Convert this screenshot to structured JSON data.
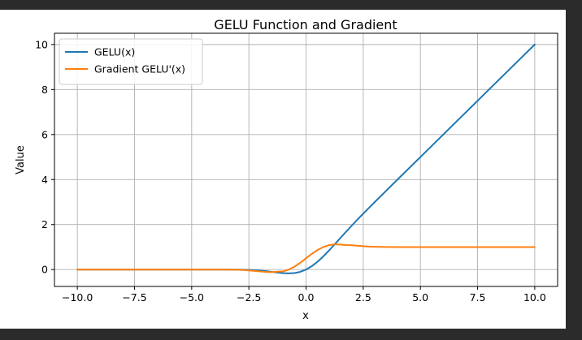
{
  "chart_data": {
    "type": "line",
    "title": "GELU Function and Gradient",
    "xlabel": "x",
    "ylabel": "Value",
    "xlim": [
      -11,
      11
    ],
    "ylim": [
      -0.75,
      10.5
    ],
    "xticks": [
      -10.0,
      -7.5,
      -5.0,
      -2.5,
      0.0,
      2.5,
      5.0,
      7.5,
      10.0
    ],
    "xtick_labels": [
      "−10.0",
      "−7.5",
      "−5.0",
      "−2.5",
      "0.0",
      "2.5",
      "5.0",
      "7.5",
      "10.0"
    ],
    "yticks": [
      0,
      2,
      4,
      6,
      8,
      10
    ],
    "ytick_labels": [
      "0",
      "2",
      "4",
      "6",
      "8",
      "10"
    ],
    "grid": true,
    "legend_position": "upper-left",
    "series": [
      {
        "name": "GELU(x)",
        "color": "#1f77b4",
        "x": [
          -10,
          -9,
          -8,
          -7,
          -6,
          -5,
          -4,
          -3.5,
          -3,
          -2.75,
          -2.5,
          -2.25,
          -2,
          -1.75,
          -1.5,
          -1.25,
          -1,
          -0.75,
          -0.5,
          -0.25,
          0,
          0.25,
          0.5,
          0.75,
          1,
          1.25,
          1.5,
          1.75,
          2,
          2.25,
          2.5,
          2.75,
          3,
          3.5,
          4,
          5,
          6,
          7,
          8,
          9,
          10
        ],
        "y": [
          0,
          0,
          0,
          0,
          0,
          0,
          -0.0001,
          -0.0008,
          -0.004,
          -0.008,
          -0.0155,
          -0.0275,
          -0.0455,
          -0.07,
          -0.1002,
          -0.1321,
          -0.1587,
          -0.1699,
          -0.1543,
          -0.1003,
          0,
          0.1497,
          0.3457,
          0.5801,
          0.8413,
          1.1179,
          1.3998,
          1.68,
          1.9545,
          2.2225,
          2.4845,
          2.7418,
          2.996,
          3.4992,
          3.9999,
          5,
          6,
          7,
          8,
          9,
          10
        ]
      },
      {
        "name": "Gradient GELU'(x)",
        "color": "#ff7f0e",
        "x": [
          -10,
          -9,
          -8,
          -7,
          -6,
          -5,
          -4,
          -3.5,
          -3,
          -2.75,
          -2.5,
          -2.25,
          -2,
          -1.75,
          -1.5,
          -1.25,
          -1,
          -0.75,
          -0.5,
          -0.25,
          0,
          0.25,
          0.5,
          0.75,
          1,
          1.25,
          1.5,
          1.75,
          2,
          2.25,
          2.5,
          2.75,
          3,
          3.5,
          4,
          5,
          6,
          7,
          8,
          9,
          10
        ],
        "y": [
          0,
          0,
          0,
          0,
          0,
          0,
          -0.0005,
          -0.0029,
          -0.0119,
          -0.0219,
          -0.0375,
          -0.0595,
          -0.0852,
          -0.1064,
          -0.1135,
          -0.0918,
          -0.0833,
          0.0026,
          0.1325,
          0.3027,
          0.5,
          0.6973,
          0.8675,
          0.9974,
          1.0833,
          1.1223,
          1.1135,
          1.0864,
          1.0852,
          1.0595,
          1.0375,
          1.0219,
          1.0119,
          1.0029,
          1.0005,
          1,
          1,
          1,
          1,
          1,
          1
        ]
      }
    ]
  }
}
